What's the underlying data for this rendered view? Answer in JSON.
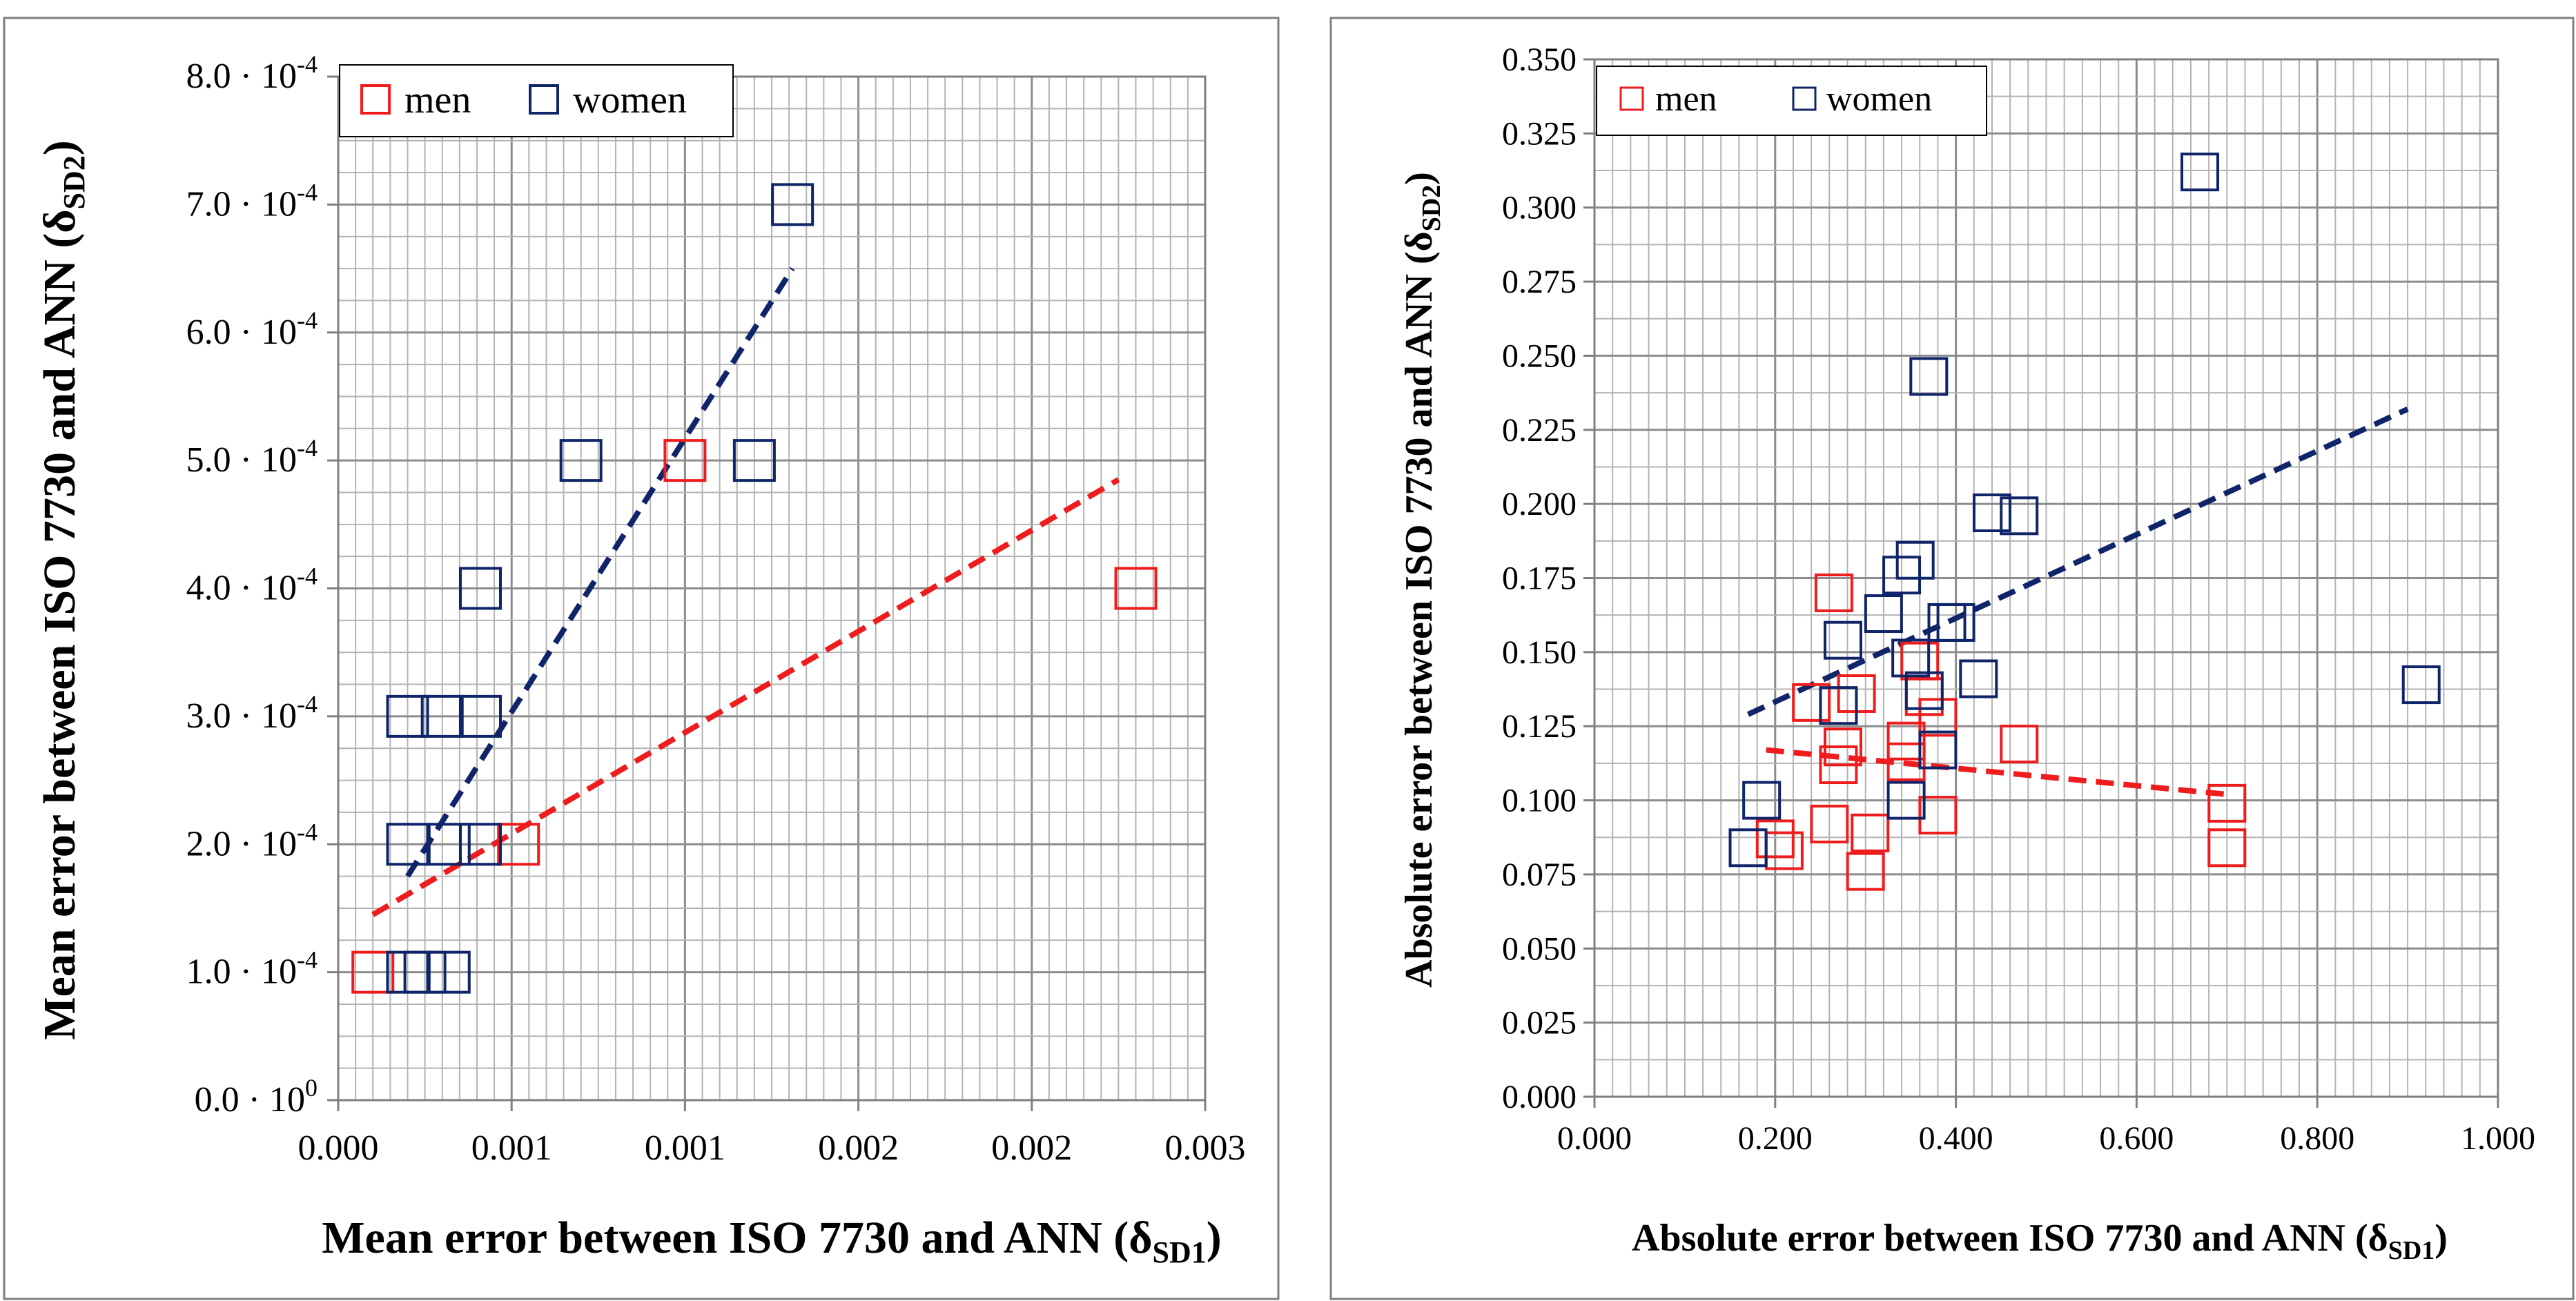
{
  "colors": {
    "men": "#ee1c1c",
    "women": "#0f2469",
    "grid": "#b3b3b3",
    "frame": "#7f7f7f"
  },
  "chart_data": [
    {
      "id": "left",
      "type": "scatter",
      "xlabel_main": "Mean error between ISO 7730 and ANN (δ",
      "xlabel_sub": "SD1",
      "xlabel_end": ")",
      "ylabel_main": "Mean error between ISO 7730 and ANN (δ",
      "ylabel_sub": "SD2",
      "ylabel_end": ")",
      "xlim": [
        0,
        0.0025
      ],
      "ylim": [
        0,
        0.0008
      ],
      "x_tick_values": [
        0,
        0.0005,
        0.001,
        0.0015,
        0.002,
        0.0025
      ],
      "x_tick_labels": [
        "0.000",
        "0.001",
        "0.001",
        "0.002",
        "0.002",
        "0.003"
      ],
      "y_tick_values": [
        0,
        0.0001,
        0.0002,
        0.0003,
        0.0004,
        0.0005,
        0.0006,
        0.0007,
        0.0008
      ],
      "y_tick_mantissa": [
        "0.0 · 10",
        "1.0 · 10",
        "2.0 · 10",
        "3.0 · 10",
        "4.0 · 10",
        "5.0 · 10",
        "6.0 · 10",
        "7.0 · 10",
        "8.0 · 10"
      ],
      "y_tick_exp": [
        "0",
        "-4",
        "-4",
        "-4",
        "-4",
        "-4",
        "-4",
        "-4",
        "-4"
      ],
      "legend": [
        "men",
        "women"
      ],
      "legend_position": "top-left",
      "series": [
        {
          "name": "men",
          "points": [
            {
              "x": 0.0001,
              "y": 0.0001
            },
            {
              "x": 0.00052,
              "y": 0.0002
            },
            {
              "x": 0.001,
              "y": 0.0005
            },
            {
              "x": 0.0023,
              "y": 0.0004
            }
          ],
          "trend": {
            "x": [
              0.0001,
              0.00225
            ],
            "y": [
              0.000145,
              0.000485
            ]
          }
        },
        {
          "name": "women",
          "points": [
            {
              "x": 0.0002,
              "y": 0.0001
            },
            {
              "x": 0.00025,
              "y": 0.0001
            },
            {
              "x": 0.00032,
              "y": 0.0001
            },
            {
              "x": 0.0002,
              "y": 0.0002
            },
            {
              "x": 0.00032,
              "y": 0.0002
            },
            {
              "x": 0.00041,
              "y": 0.0002
            },
            {
              "x": 0.0002,
              "y": 0.0003
            },
            {
              "x": 0.0003,
              "y": 0.0003
            },
            {
              "x": 0.00041,
              "y": 0.0003
            },
            {
              "x": 0.00041,
              "y": 0.0004
            },
            {
              "x": 0.0007,
              "y": 0.0005
            },
            {
              "x": 0.0012,
              "y": 0.0005
            },
            {
              "x": 0.00131,
              "y": 0.0007
            }
          ],
          "trend": {
            "x": [
              0.0002,
              0.00131
            ],
            "y": [
              0.000175,
              0.00065
            ]
          }
        }
      ]
    },
    {
      "id": "right",
      "type": "scatter",
      "xlabel_main": "Absolute error between ISO 7730 and ANN (δ",
      "xlabel_sub": "SD1",
      "xlabel_end": ")",
      "ylabel_main": "Absolute error between ISO 7730 and ANN (δ",
      "ylabel_sub": "SD2",
      "ylabel_end": ")",
      "xlim": [
        0,
        1
      ],
      "ylim": [
        0,
        0.35
      ],
      "x_tick_values": [
        0,
        0.2,
        0.4,
        0.6,
        0.8,
        1.0
      ],
      "x_tick_labels": [
        "0.000",
        "0.200",
        "0.400",
        "0.600",
        "0.800",
        "1.000"
      ],
      "y_tick_values": [
        0,
        0.025,
        0.05,
        0.075,
        0.1,
        0.125,
        0.15,
        0.175,
        0.2,
        0.225,
        0.25,
        0.275,
        0.3,
        0.325,
        0.35
      ],
      "y_tick_labels": [
        "0.000",
        "0.025",
        "0.050",
        "0.075",
        "0.100",
        "0.125",
        "0.150",
        "0.175",
        "0.200",
        "0.225",
        "0.250",
        "0.275",
        "0.300",
        "0.325",
        "0.350"
      ],
      "legend": [
        "men",
        "women"
      ],
      "legend_position": "top-left",
      "series": [
        {
          "name": "men",
          "points": [
            {
              "x": 0.2,
              "y": 0.087
            },
            {
              "x": 0.21,
              "y": 0.083
            },
            {
              "x": 0.24,
              "y": 0.133
            },
            {
              "x": 0.26,
              "y": 0.092
            },
            {
              "x": 0.265,
              "y": 0.17
            },
            {
              "x": 0.27,
              "y": 0.112
            },
            {
              "x": 0.275,
              "y": 0.118
            },
            {
              "x": 0.29,
              "y": 0.136
            },
            {
              "x": 0.3,
              "y": 0.076
            },
            {
              "x": 0.305,
              "y": 0.089
            },
            {
              "x": 0.345,
              "y": 0.113
            },
            {
              "x": 0.345,
              "y": 0.12
            },
            {
              "x": 0.36,
              "y": 0.147
            },
            {
              "x": 0.365,
              "y": 0.135
            },
            {
              "x": 0.38,
              "y": 0.095
            },
            {
              "x": 0.38,
              "y": 0.128
            },
            {
              "x": 0.47,
              "y": 0.119
            },
            {
              "x": 0.7,
              "y": 0.099
            },
            {
              "x": 0.7,
              "y": 0.084
            }
          ],
          "trend": {
            "x": [
              0.19,
              0.7
            ],
            "y": [
              0.117,
              0.102
            ]
          }
        },
        {
          "name": "women",
          "points": [
            {
              "x": 0.17,
              "y": 0.084
            },
            {
              "x": 0.185,
              "y": 0.1
            },
            {
              "x": 0.27,
              "y": 0.132
            },
            {
              "x": 0.275,
              "y": 0.154
            },
            {
              "x": 0.32,
              "y": 0.163
            },
            {
              "x": 0.34,
              "y": 0.176
            },
            {
              "x": 0.345,
              "y": 0.1
            },
            {
              "x": 0.35,
              "y": 0.148
            },
            {
              "x": 0.355,
              "y": 0.181
            },
            {
              "x": 0.365,
              "y": 0.137
            },
            {
              "x": 0.37,
              "y": 0.243
            },
            {
              "x": 0.38,
              "y": 0.117
            },
            {
              "x": 0.39,
              "y": 0.16
            },
            {
              "x": 0.4,
              "y": 0.16
            },
            {
              "x": 0.425,
              "y": 0.141
            },
            {
              "x": 0.44,
              "y": 0.197
            },
            {
              "x": 0.47,
              "y": 0.196
            },
            {
              "x": 0.67,
              "y": 0.312
            },
            {
              "x": 0.915,
              "y": 0.139
            }
          ],
          "trend": {
            "x": [
              0.17,
              0.9
            ],
            "y": [
              0.129,
              0.232
            ]
          }
        }
      ]
    }
  ]
}
